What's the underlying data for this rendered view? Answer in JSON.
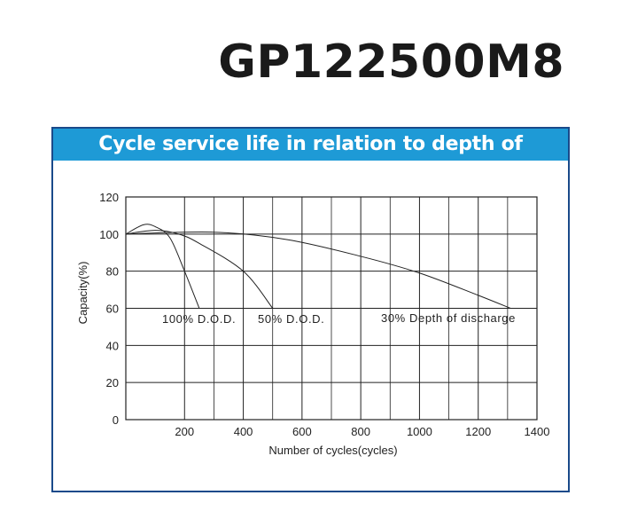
{
  "model": "GP122500M8",
  "chart_data": {
    "type": "line",
    "title": "Cycle service life in relation to depth of discharge",
    "xlabel": "Number of cycles(cycles)",
    "ylabel": "Capacity(%)",
    "xlim": [
      0,
      1400
    ],
    "ylim": [
      0,
      120
    ],
    "xticks": [
      200,
      400,
      600,
      800,
      1000,
      1200,
      1400
    ],
    "yticks": [
      0,
      20,
      40,
      60,
      80,
      100,
      120
    ],
    "grid": true,
    "series": [
      {
        "name": "100% D.O.D.",
        "x": [
          0,
          60,
          100,
          150,
          200,
          250
        ],
        "y": [
          100,
          105,
          104,
          98,
          80,
          60
        ]
      },
      {
        "name": "50% D.O.D.",
        "x": [
          0,
          100,
          180,
          250,
          400,
          500
        ],
        "y": [
          100,
          102,
          100,
          95,
          80,
          60
        ]
      },
      {
        "name": "30% Depth of discharge",
        "x": [
          0,
          300,
          550,
          800,
          1000,
          1200,
          1310
        ],
        "y": [
          100,
          101,
          97,
          88,
          79,
          67,
          60
        ]
      }
    ]
  }
}
